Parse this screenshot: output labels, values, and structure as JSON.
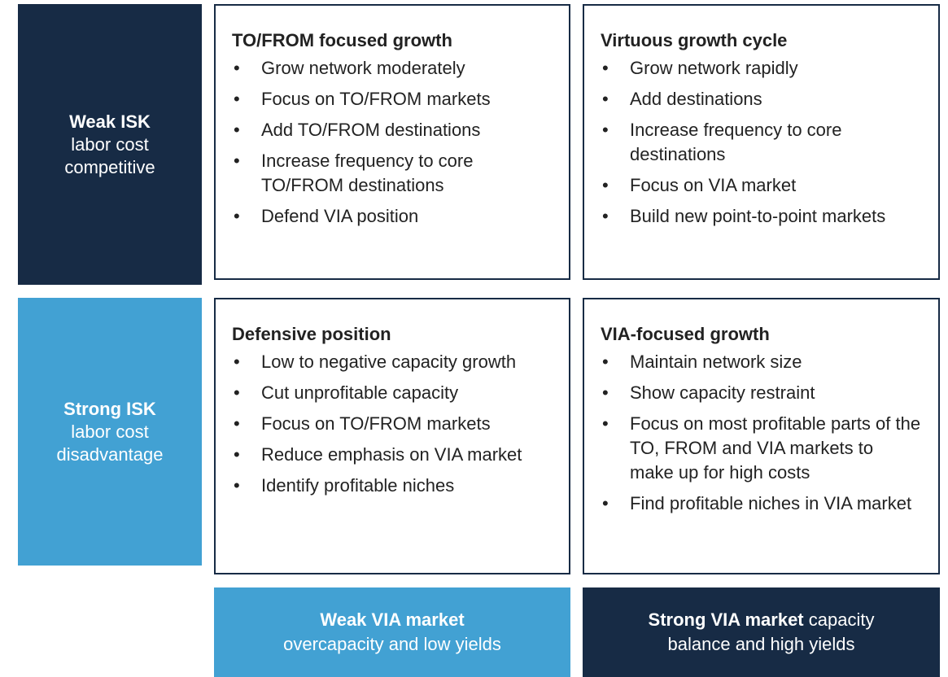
{
  "rows": [
    {
      "bold": "Weak ISK",
      "text": "labor cost competitive"
    },
    {
      "bold": "Strong ISK",
      "text": "labor cost disadvantage"
    }
  ],
  "columns": [
    {
      "bold": "Weak VIA market",
      "text": "overcapacity and low yields"
    },
    {
      "bold": "Strong VIA market",
      "text": "capacity balance and high yields"
    }
  ],
  "cells": [
    {
      "title": "TO/FROM focused growth",
      "bullets": [
        "Grow network moderately",
        "Focus on TO/FROM markets",
        "Add TO/FROM destinations",
        "Increase frequency to core TO/FROM destinations",
        "Defend VIA position"
      ]
    },
    {
      "title": "Virtuous growth cycle",
      "bullets": [
        "Grow network rapidly",
        "Add destinations",
        "Increase frequency to core destinations",
        "Focus on VIA market",
        "Build new point-to-point markets"
      ]
    },
    {
      "title": "Defensive position",
      "bullets": [
        "Low to negative capacity growth",
        "Cut unprofitable capacity",
        "Focus on TO/FROM markets",
        "Reduce emphasis on VIA market",
        "Identify profitable niches"
      ]
    },
    {
      "title": "VIA-focused growth",
      "bullets": [
        "Maintain network size",
        "Show capacity restraint",
        "Focus on most profitable parts of the TO, FROM and VIA markets to make up for high costs",
        "Find profitable niches in VIA market"
      ]
    }
  ]
}
